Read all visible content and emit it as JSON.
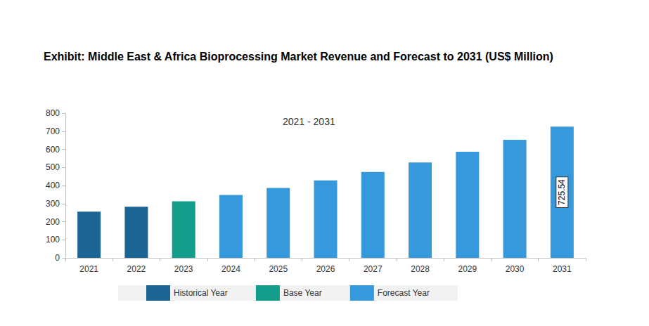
{
  "chart_data": {
    "type": "bar",
    "title": "Exhibit: Middle East & Africa Bioprocessing Market Revenue and Forecast to 2031 (US$ Million)",
    "annotation": "2021 - 2031",
    "categories": [
      "2021",
      "2022",
      "2023",
      "2024",
      "2025",
      "2026",
      "2027",
      "2028",
      "2029",
      "2030",
      "2031"
    ],
    "series": [
      {
        "name": "Historical Year",
        "color": "#1b6496",
        "values": [
          255,
          283,
          null,
          null,
          null,
          null,
          null,
          null,
          null,
          null,
          null
        ]
      },
      {
        "name": "Base Year",
        "color": "#139e8b",
        "values": [
          null,
          null,
          313,
          null,
          null,
          null,
          null,
          null,
          null,
          null,
          null
        ]
      },
      {
        "name": "Forecast Year",
        "color": "#3599db",
        "values": [
          null,
          null,
          null,
          348,
          386,
          428,
          475,
          527,
          586,
          652,
          725.54
        ],
        "value_labels": [
          null,
          null,
          null,
          null,
          null,
          null,
          null,
          null,
          null,
          null,
          "725.54"
        ]
      }
    ],
    "ylim": [
      0,
      800
    ],
    "yticks": [
      0,
      100,
      200,
      300,
      400,
      500,
      600,
      700,
      800
    ],
    "grid": false,
    "legend": "bottom"
  }
}
